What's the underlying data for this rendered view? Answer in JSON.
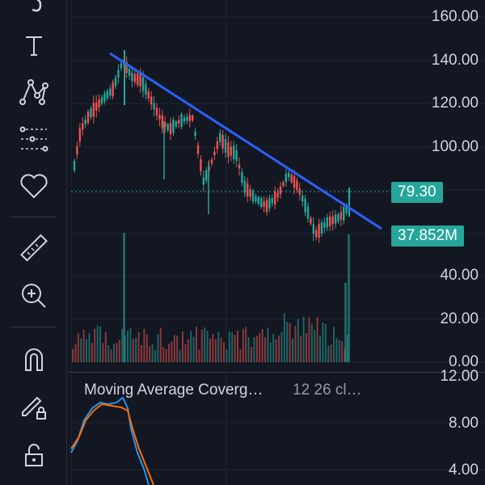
{
  "toolbar": {
    "items": [
      {
        "name": "brush-icon"
      },
      {
        "name": "text-icon"
      },
      {
        "name": "pattern-icon"
      },
      {
        "name": "prediction-icon"
      },
      {
        "name": "heart-icon"
      },
      {
        "name": "ruler-icon"
      },
      {
        "name": "zoom-in-icon"
      },
      {
        "name": "magnet-icon"
      },
      {
        "name": "pencil-lock-icon"
      },
      {
        "name": "unlock-icon"
      }
    ]
  },
  "price_axis": {
    "labels": [
      "160.00",
      "140.00",
      "120.00",
      "100.00",
      "40.00",
      "20.00",
      "0.00"
    ]
  },
  "macd_axis": {
    "labels": [
      "12.00",
      "8.00",
      "4.00"
    ]
  },
  "badges": {
    "last_price": "79.30",
    "volume": "37.852M"
  },
  "study": {
    "title": "Moving Average Coverg…",
    "params": "12 26 cl…"
  },
  "colors": {
    "background": "#131722",
    "up": "#26a69a",
    "down": "#ef5350",
    "trendline": "#2962ff",
    "macd_line": "#2196f3",
    "signal_line": "#ff6d00"
  },
  "chart_data": {
    "type": "candlestick",
    "price_range": [
      60,
      160
    ],
    "trendline": {
      "from_price": 140,
      "to_price": 68
    }
  }
}
